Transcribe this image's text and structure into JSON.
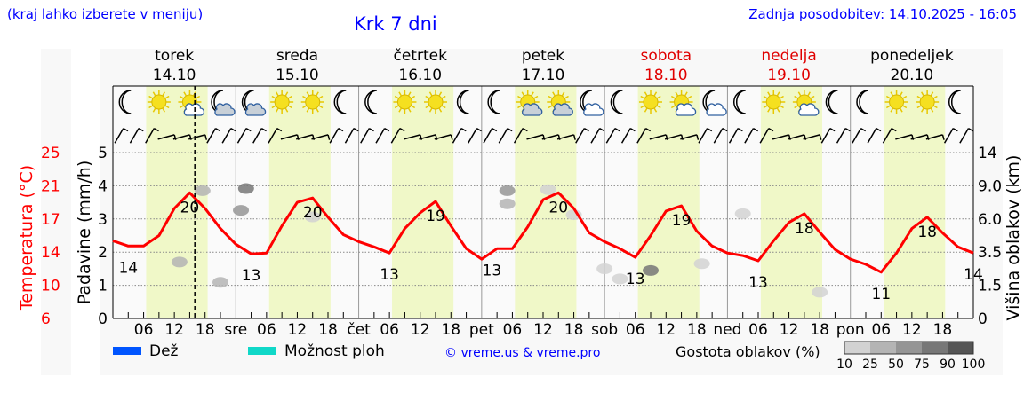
{
  "header": {
    "left_note": "(kraj lahko izberete v meniju)",
    "title": "Krk 7 dni",
    "updated": "Zadnja posodobitev: 14.10.2025 - 16:05"
  },
  "days": [
    {
      "name": "torek",
      "date": "14.10",
      "abbr": "",
      "weekend": false,
      "icons": [
        "moon",
        "sun",
        "sun-cloud",
        "moon-cloud"
      ]
    },
    {
      "name": "sreda",
      "date": "15.10",
      "abbr": "sre",
      "weekend": false,
      "icons": [
        "moon-cloud",
        "sun",
        "sun",
        "moon"
      ]
    },
    {
      "name": "četrtek",
      "date": "16.10",
      "abbr": "čet",
      "weekend": false,
      "icons": [
        "moon",
        "sun",
        "sun",
        "moon"
      ]
    },
    {
      "name": "petek",
      "date": "17.10",
      "abbr": "pet",
      "weekend": false,
      "icons": [
        "moon",
        "sun-cloud",
        "sun-cloud",
        "moon-cloud"
      ]
    },
    {
      "name": "sobota",
      "date": "18.10",
      "abbr": "sob",
      "weekend": true,
      "icons": [
        "moon",
        "sun",
        "sun-cloud",
        "moon-cloud"
      ]
    },
    {
      "name": "nedelja",
      "date": "19.10",
      "abbr": "ned",
      "weekend": true,
      "icons": [
        "moon",
        "sun",
        "sun-cloud",
        "moon"
      ]
    },
    {
      "name": "ponedeljek",
      "date": "20.10",
      "abbr": "pon",
      "weekend": false,
      "icons": [
        "moon",
        "sun",
        "sun",
        "moon"
      ]
    }
  ],
  "hour_labels": [
    "06",
    "12",
    "18"
  ],
  "legend": {
    "rain": "Dež",
    "showers": "Možnost ploh",
    "copyright": "© vreme.us & vreme.pro",
    "cloud_density": "Gostota oblakov (%)",
    "density_levels": [
      "10",
      "25",
      "50",
      "75",
      "90",
      "100"
    ]
  },
  "colors": {
    "temp": "#ff0000",
    "rain": "#0055ff",
    "showers": "#10d8c8",
    "day": "#f0f8c8",
    "link": "#0000ff"
  },
  "chart_data": {
    "type": "line",
    "title": "Krk 7 dni",
    "x_unit": "hours since 14.10 00:00",
    "now_hour": 16,
    "daylight": [
      6.5,
      18.5
    ],
    "temp_axis": {
      "label": "Temperatura (°C)",
      "ticks": [
        "6",
        "10",
        "14",
        "17",
        "21",
        "25"
      ],
      "range": [
        6,
        25
      ]
    },
    "precip_axis": {
      "label": "Padavine (mm/h)",
      "ticks": [
        "0",
        "1",
        "2",
        "3",
        "4",
        "5"
      ],
      "range": [
        0,
        5
      ]
    },
    "cloud_axis": {
      "label": "Višina oblakov (km)",
      "ticks": [
        "0",
        "1.5",
        "3.5",
        "6.0",
        "9.0",
        "14"
      ]
    },
    "temperature_3h": [
      14.9,
      14.3,
      14.3,
      15.5,
      18.6,
      20.4,
      18.6,
      16.3,
      14.5,
      13.4,
      13.5,
      16.6,
      19.3,
      19.8,
      17.6,
      15.6,
      14.8,
      14.2,
      13.5,
      16.3,
      18.1,
      19.4,
      16.6,
      14.0,
      12.8,
      14.0,
      14.0,
      16.5,
      19.6,
      20.4,
      18.6,
      15.8,
      14.8,
      14.0,
      13.0,
      15.5,
      18.3,
      18.9,
      16.0,
      14.3,
      13.5,
      13.2,
      12.6,
      14.9,
      17.0,
      18.0,
      15.9,
      13.9,
      12.8,
      12.2,
      11.3,
      13.5,
      16.3,
      17.6,
      15.8,
      14.2,
      13.5
    ],
    "temp_labels": [
      {
        "h": 3,
        "v": "14",
        "pos": "below"
      },
      {
        "h": 15,
        "v": "20",
        "pos": "above"
      },
      {
        "h": 27,
        "v": "13",
        "pos": "below"
      },
      {
        "h": 39,
        "v": "20",
        "pos": "above"
      },
      {
        "h": 54,
        "v": "13",
        "pos": "below"
      },
      {
        "h": 63,
        "v": "19",
        "pos": "above"
      },
      {
        "h": 74,
        "v": "13",
        "pos": "below"
      },
      {
        "h": 87,
        "v": "20",
        "pos": "above"
      },
      {
        "h": 102,
        "v": "13",
        "pos": "below"
      },
      {
        "h": 111,
        "v": "19",
        "pos": "above"
      },
      {
        "h": 126,
        "v": "13",
        "pos": "below"
      },
      {
        "h": 135,
        "v": "18",
        "pos": "above"
      },
      {
        "h": 150,
        "v": "11",
        "pos": "below"
      },
      {
        "h": 159,
        "v": "18",
        "pos": "above"
      },
      {
        "h": 168,
        "v": "14",
        "pos": "below"
      }
    ],
    "precipitation": [],
    "cloud_patches": [
      {
        "h": 17.5,
        "km": 8.6,
        "d": 25
      },
      {
        "h": 26,
        "km": 8.8,
        "d": 75
      },
      {
        "h": 25,
        "km": 6.8,
        "d": 50
      },
      {
        "h": 21,
        "km": 1.7,
        "d": 25
      },
      {
        "h": 13,
        "km": 2.9,
        "d": 25
      },
      {
        "h": 39,
        "km": 6.2,
        "d": 10
      },
      {
        "h": 77,
        "km": 8.6,
        "d": 50
      },
      {
        "h": 77,
        "km": 7.4,
        "d": 25
      },
      {
        "h": 85,
        "km": 8.7,
        "d": 10
      },
      {
        "h": 90,
        "km": 6.4,
        "d": 10
      },
      {
        "h": 96,
        "km": 2.5,
        "d": 10
      },
      {
        "h": 99,
        "km": 1.9,
        "d": 10
      },
      {
        "h": 105,
        "km": 2.4,
        "d": 75
      },
      {
        "h": 115,
        "km": 2.8,
        "d": 10
      },
      {
        "h": 123,
        "km": 6.5,
        "d": 10
      },
      {
        "h": 138,
        "km": 1.2,
        "d": 10
      }
    ]
  }
}
